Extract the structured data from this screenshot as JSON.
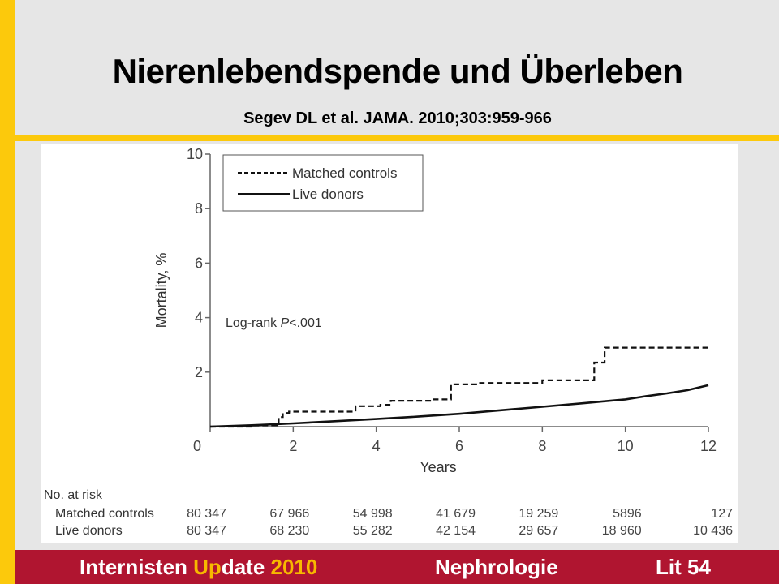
{
  "slide": {
    "title": "Nierenlebendspende und Überleben",
    "subtitle": "Segev DL et al. JAMA. 2010;303:959-966"
  },
  "footer": {
    "brand_part1": "Internisten ",
    "brand_accent": "Up",
    "brand_part2": "date ",
    "brand_year": "2010",
    "section": "Nephrologie",
    "page": "Lit 54"
  },
  "colors": {
    "yellow": "#fcc90c",
    "footer_red": "#b01530",
    "accent_orange": "#f7b900",
    "background": "#e6e6e6"
  },
  "chart_data": {
    "type": "line",
    "title": "",
    "xlabel": "Years",
    "ylabel": "Mortality, %",
    "xlim": [
      0,
      12
    ],
    "ylim": [
      0,
      10
    ],
    "xticks": [
      0,
      2,
      4,
      6,
      8,
      10,
      12
    ],
    "yticks": [
      2,
      4,
      6,
      8,
      10
    ],
    "xtick_labels": [
      "0",
      "2",
      "4",
      "6",
      "8",
      "10",
      "12"
    ],
    "ytick_labels": [
      "2",
      "4",
      "6",
      "8",
      "10"
    ],
    "grid": false,
    "legend": {
      "position": "top-left",
      "entries": [
        "Matched controls",
        "Live donors"
      ]
    },
    "annotation": {
      "prefix": "Log-rank ",
      "italic": "P",
      "suffix": "<.001"
    },
    "series": [
      {
        "name": "Matched controls",
        "style": "dashed",
        "step": true,
        "x": [
          0,
          1.0,
          1.6,
          1.65,
          1.75,
          1.9,
          3.5,
          4.1,
          4.35,
          5.35,
          5.8,
          6.5,
          8.0,
          9.25,
          9.5,
          12.0
        ],
        "y": [
          0,
          0.05,
          0.1,
          0.35,
          0.5,
          0.55,
          0.75,
          0.8,
          0.95,
          1.0,
          1.55,
          1.6,
          1.7,
          2.35,
          2.9,
          2.9
        ]
      },
      {
        "name": "Live donors",
        "style": "solid",
        "step": false,
        "x": [
          0,
          1,
          2,
          3,
          4,
          5,
          6,
          7,
          8,
          9,
          10,
          10.5,
          11,
          11.5,
          12
        ],
        "y": [
          0,
          0.05,
          0.12,
          0.2,
          0.28,
          0.37,
          0.47,
          0.6,
          0.73,
          0.86,
          1.0,
          1.12,
          1.22,
          1.34,
          1.52
        ]
      }
    ],
    "at_risk": {
      "header": "No. at risk",
      "rows": [
        {
          "label": "Matched controls",
          "values": [
            "80 347",
            "67 966",
            "54 998",
            "41 679",
            "19 259",
            "5896",
            "127"
          ]
        },
        {
          "label": "Live donors",
          "values": [
            "80 347",
            "68 230",
            "55 282",
            "42 154",
            "29 657",
            "18 960",
            "10 436"
          ]
        }
      ]
    }
  }
}
